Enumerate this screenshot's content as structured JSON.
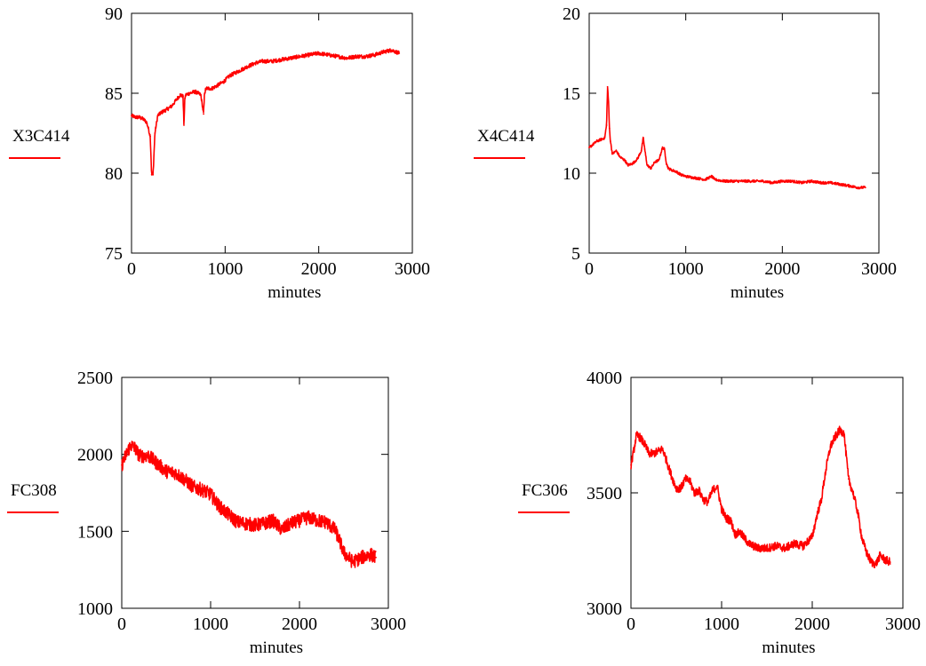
{
  "page": {
    "background": "#ffffff",
    "series_color": "#ff0000"
  },
  "chart_data": [
    {
      "type": "line",
      "ylabel": "X3C414",
      "xlabel": "minutes",
      "xlim": [
        0,
        3000
      ],
      "ylim": [
        75,
        90
      ],
      "xticks": [
        0,
        1000,
        2000,
        3000
      ],
      "yticks": [
        75,
        80,
        85,
        90
      ],
      "grid": false,
      "legend": "left",
      "series": [
        {
          "name": "X3C414",
          "x": [
            0,
            40,
            80,
            120,
            160,
            180,
            200,
            215,
            230,
            250,
            280,
            320,
            380,
            430,
            480,
            520,
            550,
            560,
            570,
            580,
            620,
            680,
            740,
            770,
            780,
            790,
            800,
            860,
            920,
            980,
            1050,
            1150,
            1250,
            1330,
            1400,
            1500,
            1600,
            1700,
            1800,
            1900,
            2000,
            2100,
            2200,
            2300,
            2400,
            2500,
            2600,
            2700,
            2780,
            2820,
            2860
          ],
          "y": [
            83.6,
            83.5,
            83.5,
            83.4,
            83.2,
            82.8,
            82.3,
            79.9,
            79.9,
            82.5,
            83.6,
            83.8,
            84.0,
            84.2,
            84.6,
            84.9,
            84.8,
            83.0,
            84.7,
            84.9,
            85.0,
            85.1,
            84.9,
            83.7,
            85.0,
            85.2,
            85.3,
            85.3,
            85.5,
            85.7,
            86.1,
            86.4,
            86.7,
            86.9,
            87.0,
            87.0,
            87.1,
            87.2,
            87.3,
            87.4,
            87.5,
            87.4,
            87.3,
            87.2,
            87.3,
            87.3,
            87.4,
            87.6,
            87.7,
            87.6,
            87.5
          ]
        }
      ]
    },
    {
      "type": "line",
      "ylabel": "X4C414",
      "xlabel": "minutes",
      "xlim": [
        0,
        3000
      ],
      "ylim": [
        5,
        20
      ],
      "xticks": [
        0,
        1000,
        2000,
        3000
      ],
      "yticks": [
        5,
        10,
        15,
        20
      ],
      "grid": false,
      "legend": "left",
      "series": [
        {
          "name": "X4C414",
          "x": [
            0,
            40,
            80,
            120,
            160,
            180,
            190,
            200,
            210,
            220,
            240,
            280,
            320,
            370,
            400,
            450,
            500,
            540,
            560,
            575,
            600,
            640,
            680,
            720,
            760,
            780,
            800,
            820,
            850,
            900,
            950,
            1000,
            1100,
            1200,
            1270,
            1300,
            1400,
            1500,
            1600,
            1700,
            1800,
            1900,
            2000,
            2100,
            2200,
            2300,
            2400,
            2500,
            2600,
            2700,
            2780,
            2860
          ],
          "y": [
            11.6,
            11.8,
            12.0,
            12.1,
            12.2,
            13.0,
            15.4,
            14.5,
            12.8,
            12.0,
            11.2,
            11.4,
            11.0,
            10.8,
            10.5,
            10.6,
            10.9,
            11.4,
            12.2,
            11.5,
            10.5,
            10.3,
            10.7,
            10.8,
            11.6,
            11.5,
            10.6,
            10.3,
            10.2,
            10.1,
            9.9,
            9.8,
            9.7,
            9.6,
            9.8,
            9.6,
            9.5,
            9.5,
            9.5,
            9.5,
            9.5,
            9.4,
            9.5,
            9.5,
            9.4,
            9.5,
            9.4,
            9.4,
            9.3,
            9.2,
            9.1,
            9.1
          ]
        }
      ]
    },
    {
      "type": "line",
      "ylabel": "FC308",
      "xlabel": "minutes",
      "xlim": [
        0,
        3000
      ],
      "ylim": [
        1000,
        2500
      ],
      "xticks": [
        0,
        1000,
        2000,
        3000
      ],
      "yticks": [
        1000,
        1500,
        2000,
        2500
      ],
      "grid": false,
      "legend": "left",
      "series": [
        {
          "name": "FC308",
          "x": [
            0,
            50,
            100,
            150,
            200,
            300,
            400,
            500,
            600,
            700,
            800,
            900,
            1000,
            1100,
            1200,
            1300,
            1400,
            1500,
            1600,
            1700,
            1800,
            1900,
            2000,
            2100,
            2200,
            2300,
            2400,
            2450,
            2500,
            2600,
            2700,
            2800,
            2860
          ],
          "y": [
            1930,
            2000,
            2060,
            2040,
            1990,
            1990,
            1940,
            1890,
            1880,
            1840,
            1790,
            1770,
            1740,
            1660,
            1610,
            1560,
            1550,
            1540,
            1550,
            1570,
            1510,
            1550,
            1570,
            1590,
            1570,
            1560,
            1510,
            1440,
            1360,
            1300,
            1330,
            1350,
            1330
          ]
        }
      ]
    },
    {
      "type": "line",
      "ylabel": "FC306",
      "xlabel": "minutes",
      "xlim": [
        0,
        3000
      ],
      "ylim": [
        3000,
        4000
      ],
      "xticks": [
        0,
        1000,
        2000,
        3000
      ],
      "yticks": [
        3000,
        3500,
        4000
      ],
      "grid": false,
      "legend": "left",
      "series": [
        {
          "name": "FC306",
          "x": [
            0,
            30,
            60,
            100,
            150,
            200,
            250,
            300,
            350,
            400,
            450,
            500,
            550,
            600,
            650,
            700,
            750,
            800,
            850,
            900,
            950,
            1000,
            1050,
            1100,
            1150,
            1200,
            1300,
            1400,
            1500,
            1600,
            1700,
            1800,
            1900,
            2000,
            2050,
            2100,
            2150,
            2200,
            2250,
            2300,
            2350,
            2400,
            2450,
            2500,
            2550,
            2600,
            2650,
            2700,
            2750,
            2800,
            2860
          ],
          "y": [
            3620,
            3680,
            3750,
            3740,
            3710,
            3670,
            3670,
            3680,
            3690,
            3630,
            3570,
            3520,
            3520,
            3560,
            3550,
            3500,
            3510,
            3470,
            3460,
            3510,
            3530,
            3430,
            3390,
            3380,
            3320,
            3330,
            3280,
            3260,
            3260,
            3270,
            3260,
            3280,
            3270,
            3310,
            3400,
            3470,
            3600,
            3700,
            3740,
            3770,
            3760,
            3560,
            3500,
            3420,
            3300,
            3240,
            3200,
            3190,
            3230,
            3210,
            3200
          ]
        }
      ]
    }
  ]
}
